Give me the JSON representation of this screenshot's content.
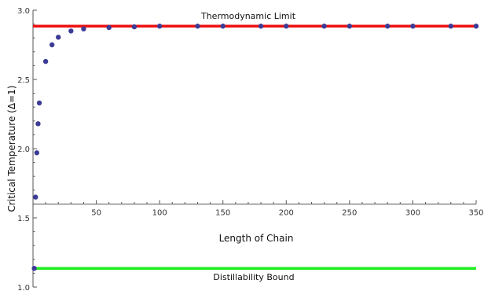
{
  "chart_data": {
    "type": "scatter",
    "title": "",
    "xlabel": "Length of Chain",
    "ylabel": "Critical Temperature (Δ=1)",
    "xlim": [
      0,
      350
    ],
    "ylim": [
      1.0,
      3.0
    ],
    "x_ticks": [
      50,
      100,
      150,
      200,
      250,
      300,
      350
    ],
    "y_ticks": [
      1.0,
      1.5,
      2.0,
      2.5,
      3.0
    ],
    "y_tick_labels": [
      "1.0",
      "1.5",
      "2.0",
      "2.5",
      "3.0"
    ],
    "x_axis_at_y": 1.6,
    "grid": false,
    "series": [
      {
        "color": "#3c3c96",
        "points": [
          {
            "x": 1,
            "y": 1.135
          },
          {
            "x": 2,
            "y": 1.65
          },
          {
            "x": 3,
            "y": 1.97
          },
          {
            "x": 4,
            "y": 2.18
          },
          {
            "x": 5,
            "y": 2.33
          },
          {
            "x": 10,
            "y": 2.63
          },
          {
            "x": 15,
            "y": 2.75
          },
          {
            "x": 20,
            "y": 2.805
          },
          {
            "x": 30,
            "y": 2.85
          },
          {
            "x": 40,
            "y": 2.865
          },
          {
            "x": 60,
            "y": 2.875
          },
          {
            "x": 80,
            "y": 2.88
          },
          {
            "x": 100,
            "y": 2.885
          },
          {
            "x": 130,
            "y": 2.885
          },
          {
            "x": 150,
            "y": 2.885
          },
          {
            "x": 180,
            "y": 2.885
          },
          {
            "x": 200,
            "y": 2.885
          },
          {
            "x": 230,
            "y": 2.885
          },
          {
            "x": 250,
            "y": 2.885
          },
          {
            "x": 280,
            "y": 2.885
          },
          {
            "x": 300,
            "y": 2.885
          },
          {
            "x": 330,
            "y": 2.885
          },
          {
            "x": 350,
            "y": 2.885
          }
        ]
      }
    ],
    "reference_lines": [
      {
        "label": "Thermodynamic Limit",
        "y": 2.885,
        "color": "#ee1111"
      },
      {
        "label": "Distillability Bound",
        "y": 1.135,
        "color": "#22ee22"
      }
    ]
  }
}
